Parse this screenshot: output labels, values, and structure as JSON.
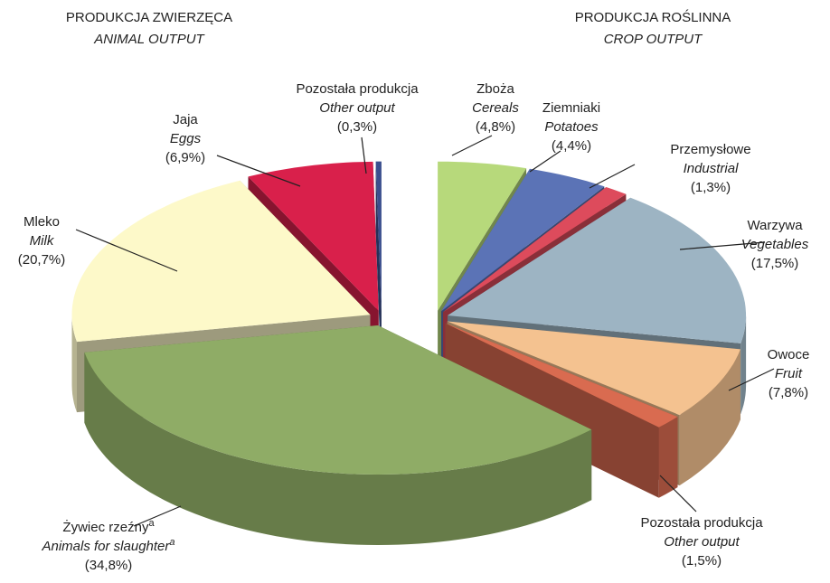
{
  "chart_data": {
    "type": "pie",
    "groups": [
      {
        "title": "PRODUKCJA ZWIERZĘCA",
        "subtitle": "ANIMAL OUTPUT",
        "categories": [
          "Pozostała produkcja",
          "Jaja",
          "Mleko",
          "Żywiec rzeźny"
        ],
        "categories_en": [
          "Other output",
          "Eggs",
          "Milk",
          "Animals for slaughter"
        ],
        "footnote_marks": [
          null,
          null,
          null,
          "a"
        ],
        "values": [
          0.3,
          6.9,
          20.7,
          34.8
        ],
        "value_labels": [
          "(0,3%)",
          "(6,9%)",
          "(20,7%)",
          "(34,8%)"
        ],
        "colors": [
          "#3b4f8e",
          "#d9204b",
          "#fdf9c9",
          "#8fac66"
        ]
      },
      {
        "title": "PRODUKCJA ROŚLINNA",
        "subtitle": "CROP OUTPUT",
        "categories": [
          "Zboża",
          "Ziemniaki",
          "Przemysłowe",
          "Warzywa",
          "Owoce",
          "Pozostała produkcja"
        ],
        "categories_en": [
          "Cereals",
          "Potatoes",
          "Industrial",
          "Vegetables",
          "Fruit",
          "Other output"
        ],
        "values": [
          4.8,
          4.4,
          1.3,
          17.5,
          7.8,
          1.5
        ],
        "value_labels": [
          "(4,8%)",
          "(4,4%)",
          "(1,3%)",
          "(17,5%)",
          "(7,8%)",
          "(1,5%)"
        ],
        "colors": [
          "#b7d97b",
          "#5b73b6",
          "#dd4b5c",
          "#9db4c3",
          "#f4c290",
          "#d96b50"
        ]
      }
    ]
  }
}
